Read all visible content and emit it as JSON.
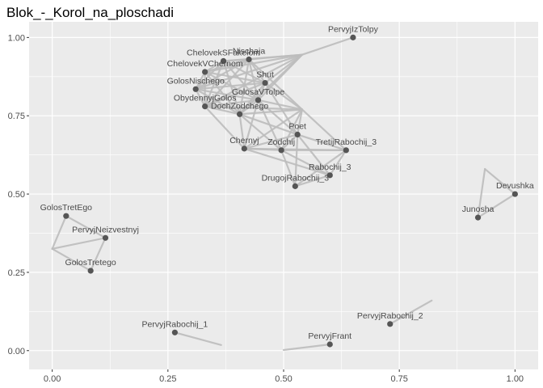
{
  "chart_data": {
    "type": "scatter",
    "title": "Blok_-_Korol_na_ploschadi",
    "xlabel": "",
    "ylabel": "",
    "xlim": [
      -0.05,
      1.05
    ],
    "ylim": [
      -0.06,
      1.05
    ],
    "x_ticks": [
      0.0,
      0.25,
      0.5,
      0.75,
      1.0
    ],
    "x_tick_labels": [
      "0.00",
      "0.25",
      "0.50",
      "0.75",
      "1.00"
    ],
    "y_ticks": [
      0.0,
      0.25,
      0.5,
      0.75,
      1.0
    ],
    "y_tick_labels": [
      "0.00",
      "0.25",
      "0.50",
      "0.75",
      "1.00"
    ],
    "grid": true,
    "legend": "none",
    "colors": {
      "panel": "#ebebeb",
      "grid": "#ffffff",
      "edge": "#bdbdbd",
      "node": "#555555",
      "label": "#4a4a4a"
    },
    "nodes": [
      {
        "name": "PervyjIzTolpy",
        "x": 0.65,
        "y": 1.0
      },
      {
        "name": "ChelovekSFakelom",
        "x": 0.37,
        "y": 0.925
      },
      {
        "name": "Nischaja",
        "x": 0.425,
        "y": 0.93
      },
      {
        "name": "ChelovekVChernom",
        "x": 0.33,
        "y": 0.89
      },
      {
        "name": "Shut",
        "x": 0.46,
        "y": 0.855
      },
      {
        "name": "GolosNischego",
        "x": 0.31,
        "y": 0.835
      },
      {
        "name": "GolosaVTolpe",
        "x": 0.445,
        "y": 0.8
      },
      {
        "name": "ObydennyjGolos",
        "x": 0.33,
        "y": 0.78
      },
      {
        "name": "DochZodchego",
        "x": 0.405,
        "y": 0.755
      },
      {
        "name": "Poet",
        "x": 0.53,
        "y": 0.69
      },
      {
        "name": "Chernyj",
        "x": 0.415,
        "y": 0.645
      },
      {
        "name": "Zodchij",
        "x": 0.495,
        "y": 0.64
      },
      {
        "name": "TretijRabochij_3",
        "x": 0.635,
        "y": 0.64
      },
      {
        "name": "Rabochij_3",
        "x": 0.6,
        "y": 0.56
      },
      {
        "name": "DrugojRabochij_3",
        "x": 0.525,
        "y": 0.525
      },
      {
        "name": "Devushka",
        "x": 1.0,
        "y": 0.5
      },
      {
        "name": "Junosha",
        "x": 0.92,
        "y": 0.425
      },
      {
        "name": "GolosTretEgo",
        "x": 0.03,
        "y": 0.43
      },
      {
        "name": "PervyjNeizvestnyj",
        "x": 0.115,
        "y": 0.36
      },
      {
        "name": "GolosTretego",
        "x": 0.083,
        "y": 0.255
      },
      {
        "name": "PervyjRabochij_2",
        "x": 0.73,
        "y": 0.085
      },
      {
        "name": "PervyjRabochij_1",
        "x": 0.265,
        "y": 0.058
      },
      {
        "name": "PervyjFrant",
        "x": 0.6,
        "y": 0.02
      }
    ],
    "edge_points": [
      {
        "name": "hub-top",
        "x": 0.54,
        "y": 0.945
      },
      {
        "name": "hub-mid",
        "x": 0.54,
        "y": 0.77
      },
      {
        "name": "hub-left",
        "x": 0.0,
        "y": 0.325
      },
      {
        "name": "hub-right",
        "x": 0.935,
        "y": 0.58
      },
      {
        "name": "end-pr2",
        "x": 0.82,
        "y": 0.16
      },
      {
        "name": "end-pr1",
        "x": 0.365,
        "y": 0.018
      },
      {
        "name": "end-pf",
        "x": 0.5,
        "y": 0.002
      }
    ],
    "edges": [
      [
        "PervyjIzTolpy",
        "hub-top"
      ],
      [
        "hub-top",
        "ChelovekSFakelom"
      ],
      [
        "hub-top",
        "Nischaja"
      ],
      [
        "hub-top",
        "ChelovekVChernom"
      ],
      [
        "hub-top",
        "Shut"
      ],
      [
        "hub-top",
        "GolosNischego"
      ],
      [
        "hub-top",
        "GolosaVTolpe"
      ],
      [
        "hub-top",
        "ObydennyjGolos"
      ],
      [
        "hub-top",
        "DochZodchego"
      ],
      [
        "ChelovekSFakelom",
        "Nischaja"
      ],
      [
        "ChelovekSFakelom",
        "ChelovekVChernom"
      ],
      [
        "ChelovekSFakelom",
        "Shut"
      ],
      [
        "ChelovekSFakelom",
        "GolosNischego"
      ],
      [
        "ChelovekSFakelom",
        "GolosaVTolpe"
      ],
      [
        "ChelovekSFakelom",
        "ObydennyjGolos"
      ],
      [
        "ChelovekSFakelom",
        "DochZodchego"
      ],
      [
        "Nischaja",
        "ChelovekVChernom"
      ],
      [
        "Nischaja",
        "Shut"
      ],
      [
        "Nischaja",
        "GolosNischego"
      ],
      [
        "Nischaja",
        "GolosaVTolpe"
      ],
      [
        "Nischaja",
        "ObydennyjGolos"
      ],
      [
        "Nischaja",
        "DochZodchego"
      ],
      [
        "ChelovekVChernom",
        "Shut"
      ],
      [
        "ChelovekVChernom",
        "GolosNischego"
      ],
      [
        "ChelovekVChernom",
        "GolosaVTolpe"
      ],
      [
        "ChelovekVChernom",
        "ObydennyjGolos"
      ],
      [
        "ChelovekVChernom",
        "DochZodchego"
      ],
      [
        "Shut",
        "GolosNischego"
      ],
      [
        "Shut",
        "GolosaVTolpe"
      ],
      [
        "Shut",
        "ObydennyjGolos"
      ],
      [
        "Shut",
        "DochZodchego"
      ],
      [
        "GolosNischego",
        "GolosaVTolpe"
      ],
      [
        "GolosNischego",
        "ObydennyjGolos"
      ],
      [
        "GolosNischego",
        "DochZodchego"
      ],
      [
        "GolosaVTolpe",
        "ObydennyjGolos"
      ],
      [
        "GolosaVTolpe",
        "DochZodchego"
      ],
      [
        "ObydennyjGolos",
        "DochZodchego"
      ],
      [
        "hub-mid",
        "GolosaVTolpe"
      ],
      [
        "hub-mid",
        "DochZodchego"
      ],
      [
        "hub-mid",
        "Shut"
      ],
      [
        "hub-mid",
        "Nischaja"
      ],
      [
        "hub-mid",
        "ObydennyjGolos"
      ],
      [
        "hub-mid",
        "Poet"
      ],
      [
        "hub-mid",
        "Chernyj"
      ],
      [
        "hub-mid",
        "Zodchij"
      ],
      [
        "hub-mid",
        "TretijRabochij_3"
      ],
      [
        "DochZodchego",
        "Poet"
      ],
      [
        "DochZodchego",
        "Chernyj"
      ],
      [
        "DochZodchego",
        "Zodchij"
      ],
      [
        "GolosaVTolpe",
        "Poet"
      ],
      [
        "GolosaVTolpe",
        "Zodchij"
      ],
      [
        "GolosaVTolpe",
        "Chernyj"
      ],
      [
        "ObydennyjGolos",
        "Chernyj"
      ],
      [
        "Shut",
        "Poet"
      ],
      [
        "Poet",
        "Chernyj"
      ],
      [
        "Poet",
        "Zodchij"
      ],
      [
        "Chernyj",
        "Zodchij"
      ],
      [
        "Poet",
        "TretijRabochij_3"
      ],
      [
        "Zodchij",
        "TretijRabochij_3"
      ],
      [
        "Chernyj",
        "TretijRabochij_3"
      ],
      [
        "Zodchij",
        "DrugojRabochij_3"
      ],
      [
        "Zodchij",
        "Rabochij_3"
      ],
      [
        "Poet",
        "DrugojRabochij_3"
      ],
      [
        "Poet",
        "Rabochij_3"
      ],
      [
        "Rabochij_3",
        "TretijRabochij_3"
      ],
      [
        "Rabochij_3",
        "DrugojRabochij_3"
      ],
      [
        "DrugojRabochij_3",
        "TretijRabochij_3"
      ],
      [
        "Chernyj",
        "Rabochij_3"
      ],
      [
        "Devushka",
        "hub-right"
      ],
      [
        "hub-right",
        "Junosha"
      ],
      [
        "Junosha",
        "Devushka"
      ],
      [
        "GolosTretEgo",
        "hub-left"
      ],
      [
        "hub-left",
        "GolosTretego"
      ],
      [
        "GolosTretEgo",
        "PervyjNeizvestnyj"
      ],
      [
        "PervyjNeizvestnyj",
        "GolosTretego"
      ],
      [
        "hub-left",
        "PervyjNeizvestnyj"
      ],
      [
        "PervyjRabochij_2",
        "end-pr2"
      ],
      [
        "PervyjRabochij_1",
        "end-pr1"
      ],
      [
        "PervyjFrant",
        "end-pf"
      ]
    ]
  }
}
